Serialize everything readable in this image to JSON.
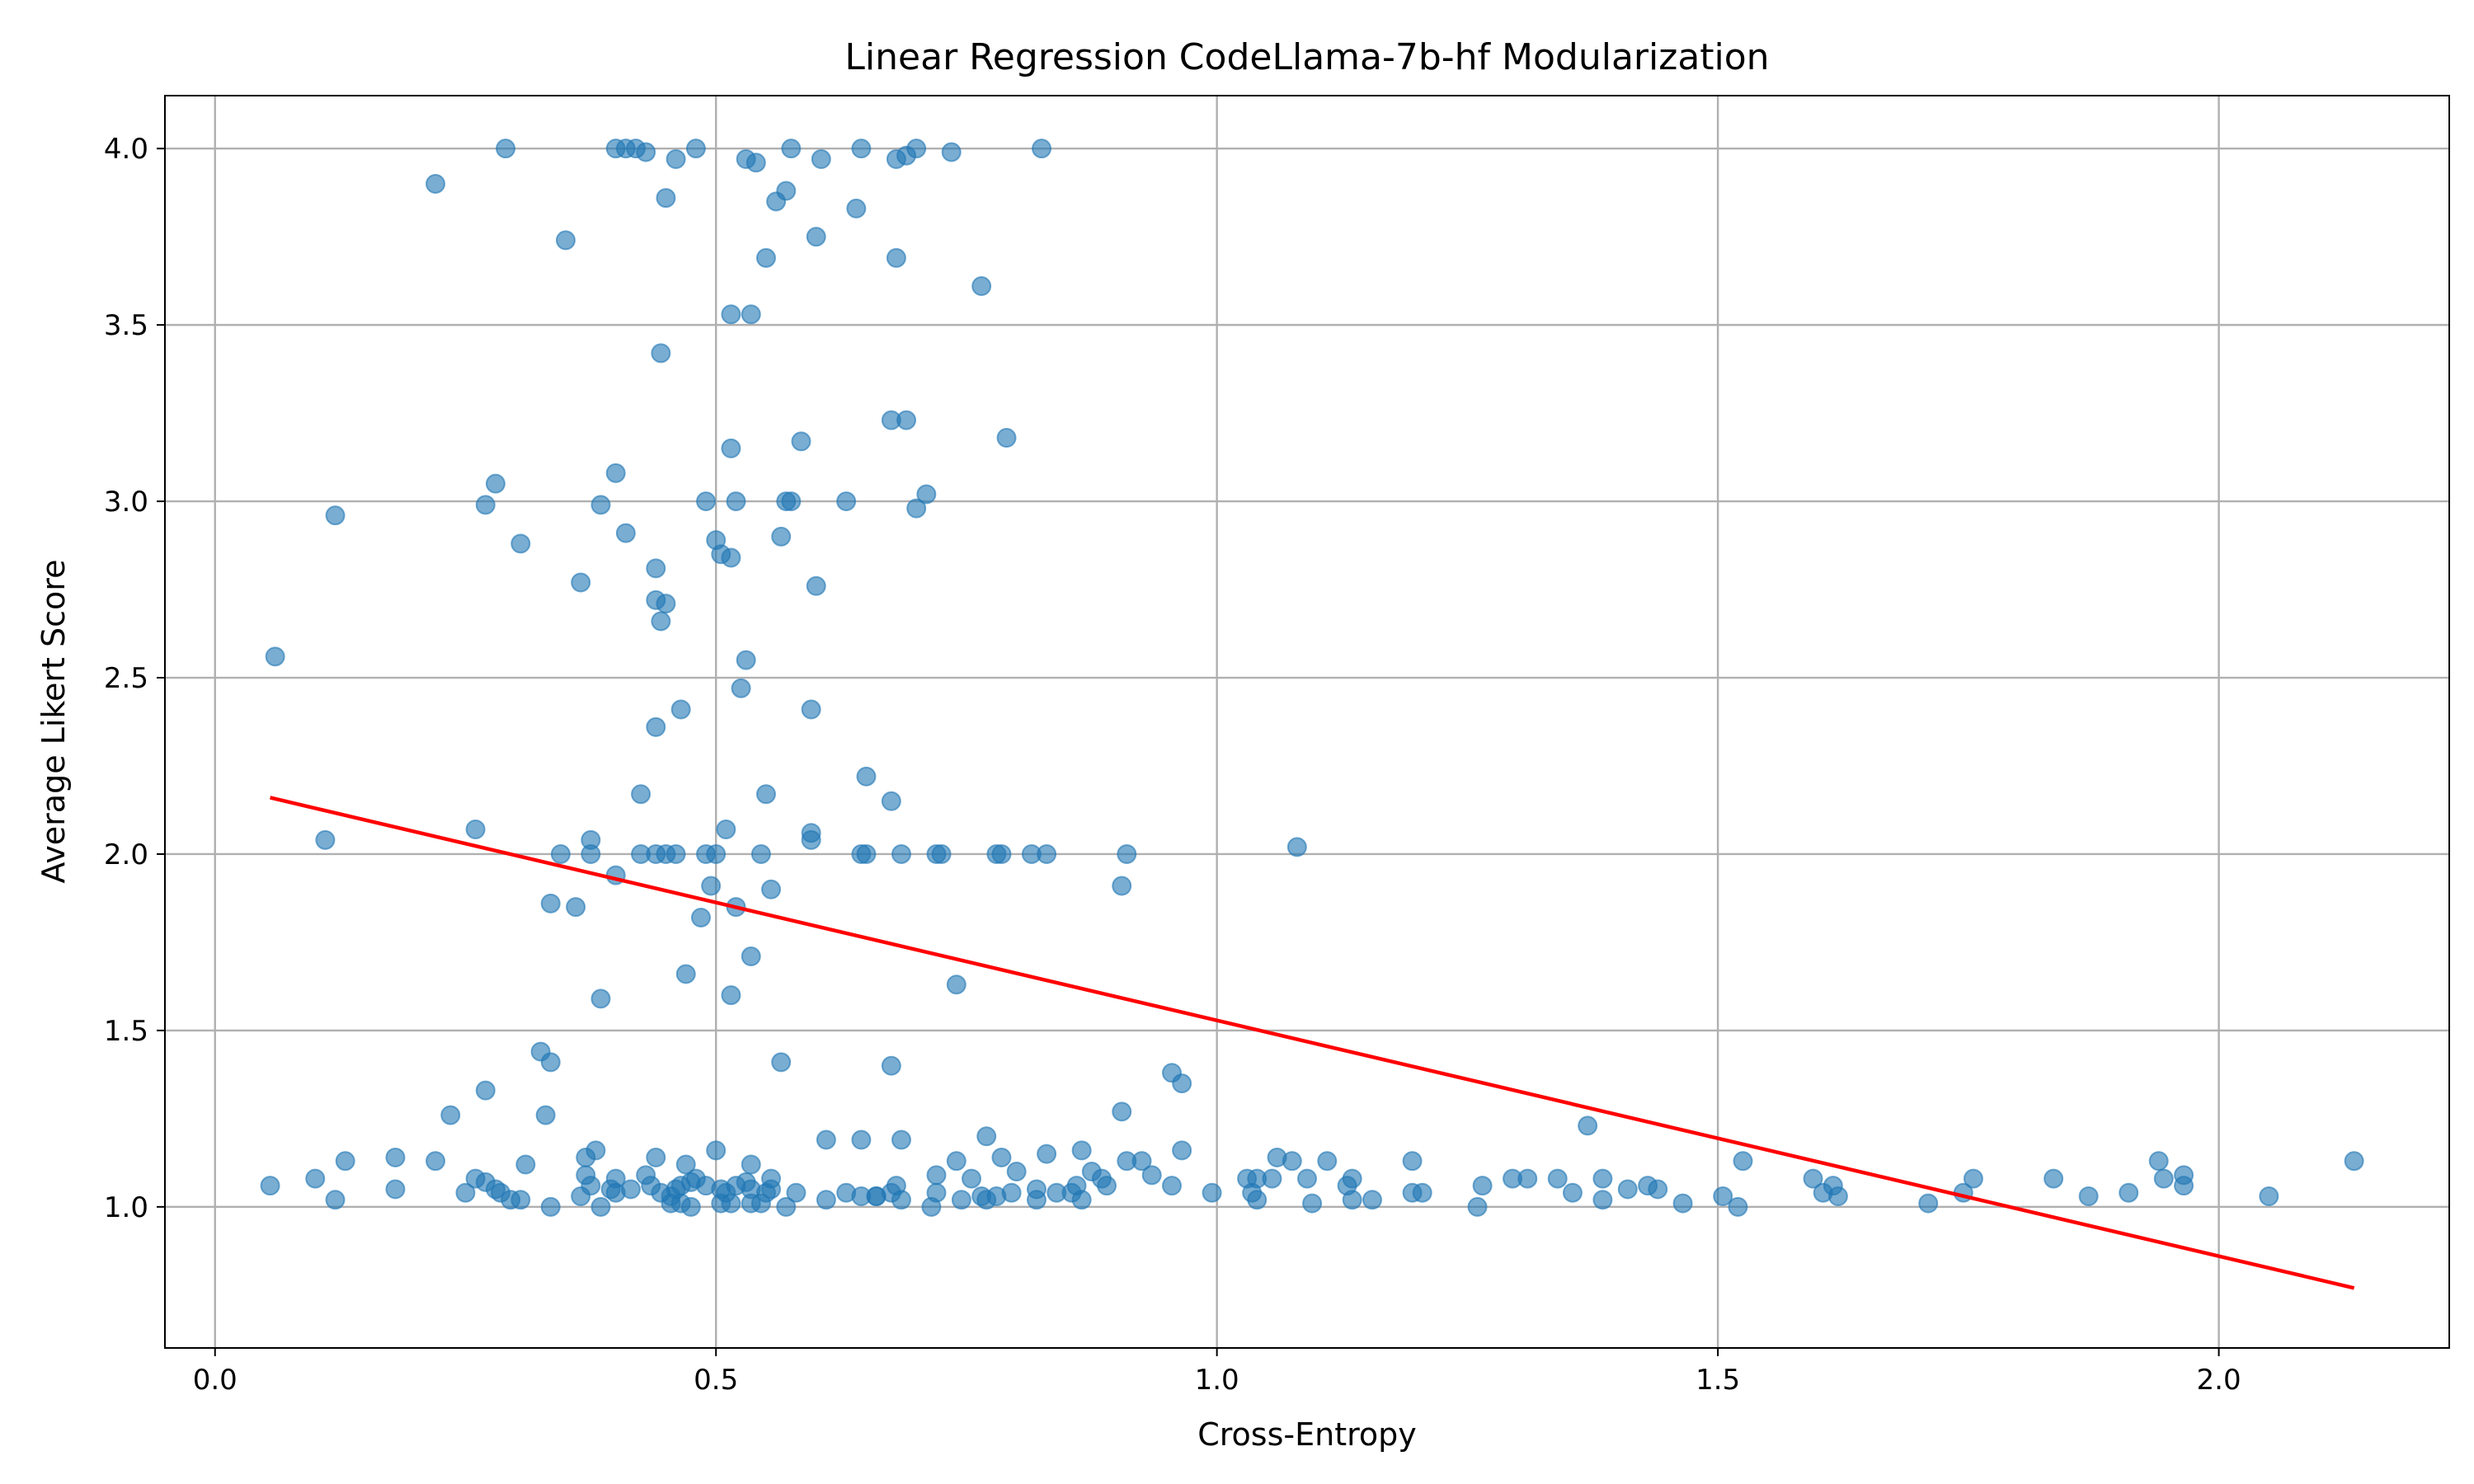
{
  "chart_data": {
    "type": "scatter",
    "title": "Linear Regression CodeLlama-7b-hf Modularization",
    "xlabel": "Cross-Entropy",
    "ylabel": "Average Likert Score",
    "xlim": [
      -0.05,
      2.23
    ],
    "ylim": [
      0.6,
      4.15
    ],
    "xticks": [
      0.0,
      0.5,
      1.0,
      1.5,
      2.0
    ],
    "xtick_labels": [
      "0.0",
      "0.5",
      "1.0",
      "1.5",
      "2.0"
    ],
    "yticks": [
      1.0,
      1.5,
      2.0,
      2.5,
      3.0,
      3.5,
      4.0
    ],
    "ytick_labels": [
      "1.0",
      "1.5",
      "2.0",
      "2.5",
      "3.0",
      "3.5",
      "4.0"
    ],
    "grid": true,
    "colors": {
      "points": "#1f77b4",
      "regression_line": "#ff0000"
    },
    "regression_line": {
      "x": [
        0.055,
        2.135
      ],
      "y": [
        2.16,
        0.77
      ]
    },
    "points": [
      [
        0.29,
        4.0
      ],
      [
        0.4,
        4.0
      ],
      [
        0.41,
        4.0
      ],
      [
        0.42,
        4.0
      ],
      [
        0.43,
        3.99
      ],
      [
        0.46,
        3.97
      ],
      [
        0.48,
        4.0
      ],
      [
        0.53,
        3.97
      ],
      [
        0.54,
        3.96
      ],
      [
        0.575,
        4.0
      ],
      [
        0.605,
        3.97
      ],
      [
        0.645,
        4.0
      ],
      [
        0.68,
        3.97
      ],
      [
        0.69,
        3.98
      ],
      [
        0.7,
        4.0
      ],
      [
        0.735,
        3.99
      ],
      [
        0.825,
        4.0
      ],
      [
        0.22,
        3.9
      ],
      [
        0.45,
        3.86
      ],
      [
        0.56,
        3.85
      ],
      [
        0.57,
        3.88
      ],
      [
        0.64,
        3.83
      ],
      [
        0.35,
        3.74
      ],
      [
        0.6,
        3.75
      ],
      [
        0.55,
        3.69
      ],
      [
        0.68,
        3.69
      ],
      [
        0.765,
        3.61
      ],
      [
        0.515,
        3.53
      ],
      [
        0.535,
        3.53
      ],
      [
        0.445,
        3.42
      ],
      [
        0.675,
        3.23
      ],
      [
        0.69,
        3.23
      ],
      [
        0.79,
        3.18
      ],
      [
        0.585,
        3.17
      ],
      [
        0.515,
        3.15
      ],
      [
        0.28,
        3.05
      ],
      [
        0.4,
        3.08
      ],
      [
        0.27,
        2.99
      ],
      [
        0.385,
        2.99
      ],
      [
        0.49,
        3.0
      ],
      [
        0.52,
        3.0
      ],
      [
        0.57,
        3.0
      ],
      [
        0.575,
        3.0
      ],
      [
        0.63,
        3.0
      ],
      [
        0.7,
        2.98
      ],
      [
        0.71,
        3.02
      ],
      [
        0.12,
        2.96
      ],
      [
        0.41,
        2.91
      ],
      [
        0.305,
        2.88
      ],
      [
        0.5,
        2.89
      ],
      [
        0.565,
        2.9
      ],
      [
        0.505,
        2.85
      ],
      [
        0.515,
        2.84
      ],
      [
        0.44,
        2.81
      ],
      [
        0.365,
        2.77
      ],
      [
        0.6,
        2.76
      ],
      [
        0.44,
        2.72
      ],
      [
        0.45,
        2.71
      ],
      [
        0.445,
        2.66
      ],
      [
        0.06,
        2.56
      ],
      [
        0.53,
        2.55
      ],
      [
        0.525,
        2.47
      ],
      [
        0.465,
        2.41
      ],
      [
        0.595,
        2.41
      ],
      [
        0.44,
        2.36
      ],
      [
        0.65,
        2.22
      ],
      [
        0.425,
        2.17
      ],
      [
        0.55,
        2.17
      ],
      [
        0.675,
        2.15
      ],
      [
        0.26,
        2.07
      ],
      [
        0.11,
        2.04
      ],
      [
        0.375,
        2.04
      ],
      [
        0.51,
        2.07
      ],
      [
        0.595,
        2.06
      ],
      [
        0.595,
        2.04
      ],
      [
        0.345,
        2.0
      ],
      [
        0.375,
        2.0
      ],
      [
        0.425,
        2.0
      ],
      [
        0.44,
        2.0
      ],
      [
        0.45,
        2.0
      ],
      [
        0.46,
        2.0
      ],
      [
        0.49,
        2.0
      ],
      [
        0.5,
        2.0
      ],
      [
        0.545,
        2.0
      ],
      [
        0.645,
        2.0
      ],
      [
        0.65,
        2.0
      ],
      [
        0.685,
        2.0
      ],
      [
        0.72,
        2.0
      ],
      [
        0.725,
        2.0
      ],
      [
        0.78,
        2.0
      ],
      [
        0.785,
        2.0
      ],
      [
        0.815,
        2.0
      ],
      [
        0.83,
        2.0
      ],
      [
        0.91,
        2.0
      ],
      [
        1.08,
        2.02
      ],
      [
        0.4,
        1.94
      ],
      [
        0.495,
        1.91
      ],
      [
        0.555,
        1.9
      ],
      [
        0.905,
        1.91
      ],
      [
        0.335,
        1.86
      ],
      [
        0.36,
        1.85
      ],
      [
        0.52,
        1.85
      ],
      [
        0.485,
        1.82
      ],
      [
        0.535,
        1.71
      ],
      [
        0.47,
        1.66
      ],
      [
        0.515,
        1.6
      ],
      [
        0.74,
        1.63
      ],
      [
        0.385,
        1.59
      ],
      [
        0.325,
        1.44
      ],
      [
        0.335,
        1.41
      ],
      [
        0.565,
        1.41
      ],
      [
        0.675,
        1.4
      ],
      [
        0.955,
        1.38
      ],
      [
        0.965,
        1.35
      ],
      [
        0.27,
        1.33
      ],
      [
        0.235,
        1.26
      ],
      [
        0.33,
        1.26
      ],
      [
        0.905,
        1.27
      ],
      [
        1.37,
        1.23
      ],
      [
        0.77,
        1.2
      ],
      [
        0.61,
        1.19
      ],
      [
        0.645,
        1.19
      ],
      [
        0.685,
        1.19
      ],
      [
        0.38,
        1.16
      ],
      [
        0.5,
        1.16
      ],
      [
        0.965,
        1.16
      ],
      [
        0.83,
        1.15
      ],
      [
        0.865,
        1.16
      ],
      [
        0.37,
        1.14
      ],
      [
        0.44,
        1.14
      ],
      [
        0.18,
        1.14
      ],
      [
        0.31,
        1.12
      ],
      [
        0.13,
        1.13
      ],
      [
        0.22,
        1.13
      ],
      [
        0.47,
        1.12
      ],
      [
        0.535,
        1.12
      ],
      [
        0.74,
        1.13
      ],
      [
        0.785,
        1.14
      ],
      [
        0.91,
        1.13
      ],
      [
        0.925,
        1.13
      ],
      [
        1.06,
        1.14
      ],
      [
        1.075,
        1.13
      ],
      [
        1.11,
        1.13
      ],
      [
        1.195,
        1.13
      ],
      [
        1.525,
        1.13
      ],
      [
        1.94,
        1.13
      ],
      [
        2.135,
        1.13
      ],
      [
        0.26,
        1.08
      ],
      [
        0.27,
        1.07
      ],
      [
        0.37,
        1.09
      ],
      [
        0.4,
        1.08
      ],
      [
        0.43,
        1.09
      ],
      [
        0.48,
        1.08
      ],
      [
        0.53,
        1.07
      ],
      [
        0.555,
        1.08
      ],
      [
        0.72,
        1.09
      ],
      [
        0.755,
        1.08
      ],
      [
        0.8,
        1.1
      ],
      [
        0.875,
        1.1
      ],
      [
        0.885,
        1.08
      ],
      [
        0.935,
        1.09
      ],
      [
        1.03,
        1.08
      ],
      [
        1.04,
        1.08
      ],
      [
        1.055,
        1.08
      ],
      [
        1.09,
        1.08
      ],
      [
        1.135,
        1.08
      ],
      [
        1.295,
        1.08
      ],
      [
        1.31,
        1.08
      ],
      [
        1.34,
        1.08
      ],
      [
        1.385,
        1.08
      ],
      [
        1.595,
        1.08
      ],
      [
        1.755,
        1.08
      ],
      [
        1.835,
        1.08
      ],
      [
        1.945,
        1.08
      ],
      [
        1.965,
        1.09
      ],
      [
        0.1,
        1.08
      ],
      [
        0.055,
        1.06
      ],
      [
        0.18,
        1.05
      ],
      [
        0.285,
        1.04
      ],
      [
        0.28,
        1.05
      ],
      [
        0.25,
        1.04
      ],
      [
        0.365,
        1.03
      ],
      [
        0.375,
        1.06
      ],
      [
        0.395,
        1.05
      ],
      [
        0.4,
        1.04
      ],
      [
        0.415,
        1.05
      ],
      [
        0.435,
        1.06
      ],
      [
        0.445,
        1.04
      ],
      [
        0.455,
        1.03
      ],
      [
        0.46,
        1.05
      ],
      [
        0.465,
        1.06
      ],
      [
        0.475,
        1.07
      ],
      [
        0.49,
        1.06
      ],
      [
        0.505,
        1.05
      ],
      [
        0.51,
        1.04
      ],
      [
        0.52,
        1.06
      ],
      [
        0.535,
        1.05
      ],
      [
        0.55,
        1.04
      ],
      [
        0.555,
        1.05
      ],
      [
        0.58,
        1.04
      ],
      [
        0.63,
        1.04
      ],
      [
        0.645,
        1.03
      ],
      [
        0.66,
        1.03
      ],
      [
        0.675,
        1.04
      ],
      [
        0.68,
        1.06
      ],
      [
        0.72,
        1.04
      ],
      [
        0.765,
        1.03
      ],
      [
        0.77,
        1.02
      ],
      [
        0.78,
        1.03
      ],
      [
        0.795,
        1.04
      ],
      [
        0.82,
        1.05
      ],
      [
        0.84,
        1.04
      ],
      [
        0.855,
        1.04
      ],
      [
        0.86,
        1.06
      ],
      [
        0.89,
        1.06
      ],
      [
        0.955,
        1.06
      ],
      [
        0.995,
        1.04
      ],
      [
        1.035,
        1.04
      ],
      [
        1.13,
        1.06
      ],
      [
        1.195,
        1.04
      ],
      [
        1.205,
        1.04
      ],
      [
        1.265,
        1.06
      ],
      [
        1.355,
        1.04
      ],
      [
        1.41,
        1.05
      ],
      [
        1.43,
        1.06
      ],
      [
        1.44,
        1.05
      ],
      [
        1.505,
        1.03
      ],
      [
        1.605,
        1.04
      ],
      [
        1.615,
        1.06
      ],
      [
        1.62,
        1.03
      ],
      [
        1.745,
        1.04
      ],
      [
        1.87,
        1.03
      ],
      [
        1.91,
        1.04
      ],
      [
        1.965,
        1.06
      ],
      [
        2.05,
        1.03
      ],
      [
        0.12,
        1.02
      ],
      [
        0.295,
        1.02
      ],
      [
        0.305,
        1.02
      ],
      [
        0.335,
        1.0
      ],
      [
        0.385,
        1.0
      ],
      [
        0.455,
        1.01
      ],
      [
        0.465,
        1.01
      ],
      [
        0.475,
        1.0
      ],
      [
        0.505,
        1.01
      ],
      [
        0.515,
        1.01
      ],
      [
        0.535,
        1.01
      ],
      [
        0.545,
        1.01
      ],
      [
        0.57,
        1.0
      ],
      [
        0.61,
        1.02
      ],
      [
        0.66,
        1.03
      ],
      [
        0.685,
        1.02
      ],
      [
        0.715,
        1.0
      ],
      [
        0.745,
        1.02
      ],
      [
        0.82,
        1.02
      ],
      [
        0.865,
        1.02
      ],
      [
        1.04,
        1.02
      ],
      [
        1.095,
        1.01
      ],
      [
        1.135,
        1.02
      ],
      [
        1.155,
        1.02
      ],
      [
        1.26,
        1.0
      ],
      [
        1.385,
        1.02
      ],
      [
        1.465,
        1.01
      ],
      [
        1.52,
        1.0
      ],
      [
        1.71,
        1.01
      ]
    ]
  }
}
